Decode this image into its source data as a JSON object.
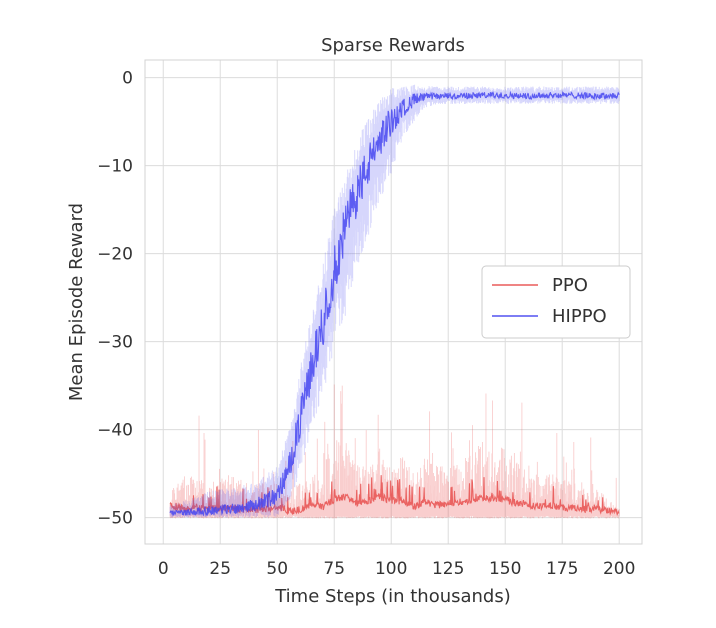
{
  "chart_data": {
    "type": "line",
    "title": "Sparse Rewards",
    "xlabel": "Time Steps (in thousands)",
    "ylabel": "Mean Episode Reward",
    "xlim": [
      -8,
      210
    ],
    "ylim": [
      -53,
      2
    ],
    "x_ticks": [
      0,
      25,
      50,
      75,
      100,
      125,
      150,
      175,
      200
    ],
    "y_ticks": [
      0,
      -10,
      -20,
      -30,
      -40,
      -50
    ],
    "grid": true,
    "legend_position": "right",
    "x": [
      3,
      10,
      20,
      30,
      40,
      50,
      55,
      60,
      65,
      70,
      75,
      80,
      85,
      90,
      95,
      100,
      105,
      110,
      115,
      120,
      130,
      140,
      150,
      160,
      170,
      180,
      190,
      200
    ],
    "series": [
      {
        "name": "PPO",
        "color": "#e8504f",
        "values": [
          -49,
          -49.5,
          -49.3,
          -49.4,
          -49.5,
          -49.2,
          -49.6,
          -49.5,
          -49.0,
          -49.2,
          -48.3,
          -48.0,
          -48.8,
          -48.5,
          -48.0,
          -48.5,
          -48.5,
          -49.2,
          -48.6,
          -49.0,
          -48.6,
          -48.2,
          -48.4,
          -49.1,
          -49.0,
          -49.4,
          -49.4,
          -49.8
        ],
        "upper": [
          -47,
          -45,
          -46,
          -45,
          -46,
          -46,
          -47,
          -46,
          -45,
          -42,
          -41,
          -41,
          -44,
          -44,
          -42,
          -44,
          -43,
          -45,
          -43,
          -44,
          -44,
          -41,
          -42,
          -45,
          -45,
          -46,
          -46,
          -49
        ]
      },
      {
        "name": "HIPPO",
        "color": "#4646f0",
        "values": [
          -49.5,
          -49.4,
          -49.2,
          -49.0,
          -48.6,
          -47.5,
          -44.5,
          -39,
          -33,
          -28,
          -22,
          -17,
          -13,
          -10,
          -7,
          -5,
          -3.5,
          -2.5,
          -2.2,
          -2.1,
          -2.1,
          -2.0,
          -2.0,
          -2.1,
          -2.0,
          -2.0,
          -2.1,
          -2.0
        ],
        "lower": [
          -50,
          -50,
          -50,
          -50,
          -50,
          -50,
          -48.5,
          -45,
          -40,
          -36,
          -31,
          -27,
          -22,
          -18,
          -14,
          -11,
          -7,
          -5,
          -3.5,
          -3,
          -3,
          -3,
          -3,
          -3,
          -3,
          -3,
          -3,
          -3
        ],
        "upper": [
          -48.5,
          -48,
          -47,
          -46.5,
          -46,
          -44,
          -40,
          -33,
          -27,
          -21,
          -15,
          -11,
          -7,
          -4.5,
          -2.5,
          -1.2,
          -1.0,
          -0.8,
          -0.9,
          -1.0,
          -1.0,
          -1.0,
          -1.0,
          -1.0,
          -1.0,
          -1.0,
          -1.0,
          -1.0
        ]
      }
    ]
  }
}
